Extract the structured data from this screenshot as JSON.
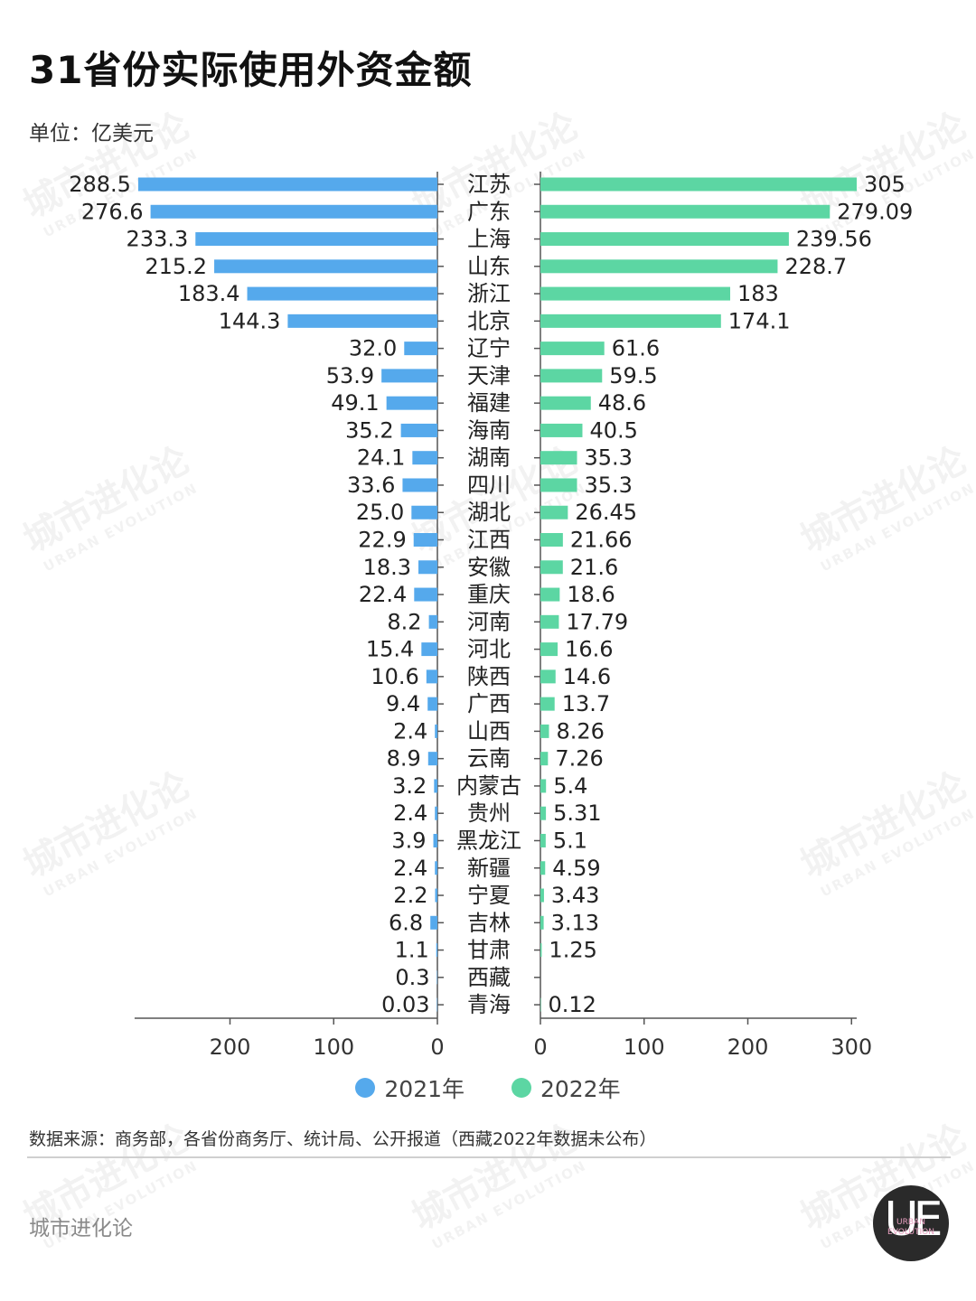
{
  "title": "31省份实际使用外资金额",
  "unit": "单位：亿美元",
  "legend": [
    {
      "label": "2021年",
      "color": "#55a9ec"
    },
    {
      "label": "2022年",
      "color": "#5cd6a3"
    }
  ],
  "source": "数据来源：商务部，各省份商务厅、统计局、公开报道（西藏2022年数据未公布）",
  "brand": "城市进化论",
  "watermark": {
    "cn": "城市进化论",
    "en": "URBAN EVOLUTION"
  },
  "logo": {
    "letters": "UE",
    "text_line1": "URBAN",
    "text_line2": "EVOLUTION"
  },
  "chart_data": {
    "type": "bar",
    "orientation": "horizontal-butterfly",
    "categories": [
      "江苏",
      "广东",
      "上海",
      "山东",
      "浙江",
      "北京",
      "辽宁",
      "天津",
      "福建",
      "海南",
      "湖南",
      "四川",
      "湖北",
      "江西",
      "安徽",
      "重庆",
      "河南",
      "河北",
      "陕西",
      "广西",
      "山西",
      "云南",
      "内蒙古",
      "贵州",
      "黑龙江",
      "新疆",
      "宁夏",
      "吉林",
      "甘肃",
      "西藏",
      "青海"
    ],
    "series": [
      {
        "name": "2021年",
        "color": "#55a9ec",
        "values": [
          288.5,
          276.6,
          233.3,
          215.2,
          183.4,
          144.3,
          32.0,
          53.9,
          49.1,
          35.2,
          24.1,
          33.6,
          25.0,
          22.9,
          18.3,
          22.4,
          8.2,
          15.4,
          10.6,
          9.4,
          2.4,
          8.9,
          3.2,
          2.4,
          3.9,
          2.4,
          2.2,
          6.8,
          1.1,
          0.3,
          0.03
        ],
        "labels": [
          "288.5",
          "276.6",
          "233.3",
          "215.2",
          "183.4",
          "144.3",
          "32.0",
          "53.9",
          "49.1",
          "35.2",
          "24.1",
          "33.6",
          "25.0",
          "22.9",
          "18.3",
          "22.4",
          "8.2",
          "15.4",
          "10.6",
          "9.4",
          "2.4",
          "8.9",
          "3.2",
          "2.4",
          "3.9",
          "2.4",
          "2.2",
          "6.8",
          "1.1",
          "0.3",
          "0.03"
        ]
      },
      {
        "name": "2022年",
        "color": "#5cd6a3",
        "values": [
          305,
          279.09,
          239.56,
          228.7,
          183,
          174.1,
          61.6,
          59.5,
          48.6,
          40.5,
          35.3,
          35.3,
          26.45,
          21.66,
          21.6,
          18.6,
          17.79,
          16.6,
          14.6,
          13.7,
          8.26,
          7.26,
          5.4,
          5.31,
          5.1,
          4.59,
          3.43,
          3.13,
          1.25,
          null,
          0.12
        ],
        "labels": [
          "305",
          "279.09",
          "239.56",
          "228.7",
          "183",
          "174.1",
          "61.6",
          "59.5",
          "48.6",
          "40.5",
          "35.3",
          "35.3",
          "26.45",
          "21.66",
          "21.6",
          "18.6",
          "17.79",
          "16.6",
          "14.6",
          "13.7",
          "8.26",
          "7.26",
          "5.4",
          "5.31",
          "5.1",
          "4.59",
          "3.43",
          "3.13",
          "1.25",
          "",
          "0.12"
        ]
      }
    ],
    "left_axis": {
      "ticks": [
        200,
        100,
        0
      ]
    },
    "right_axis": {
      "ticks": [
        0,
        100,
        200,
        300
      ]
    },
    "xlim": [
      0,
      305
    ],
    "legend_position": "bottom",
    "grid": false
  }
}
